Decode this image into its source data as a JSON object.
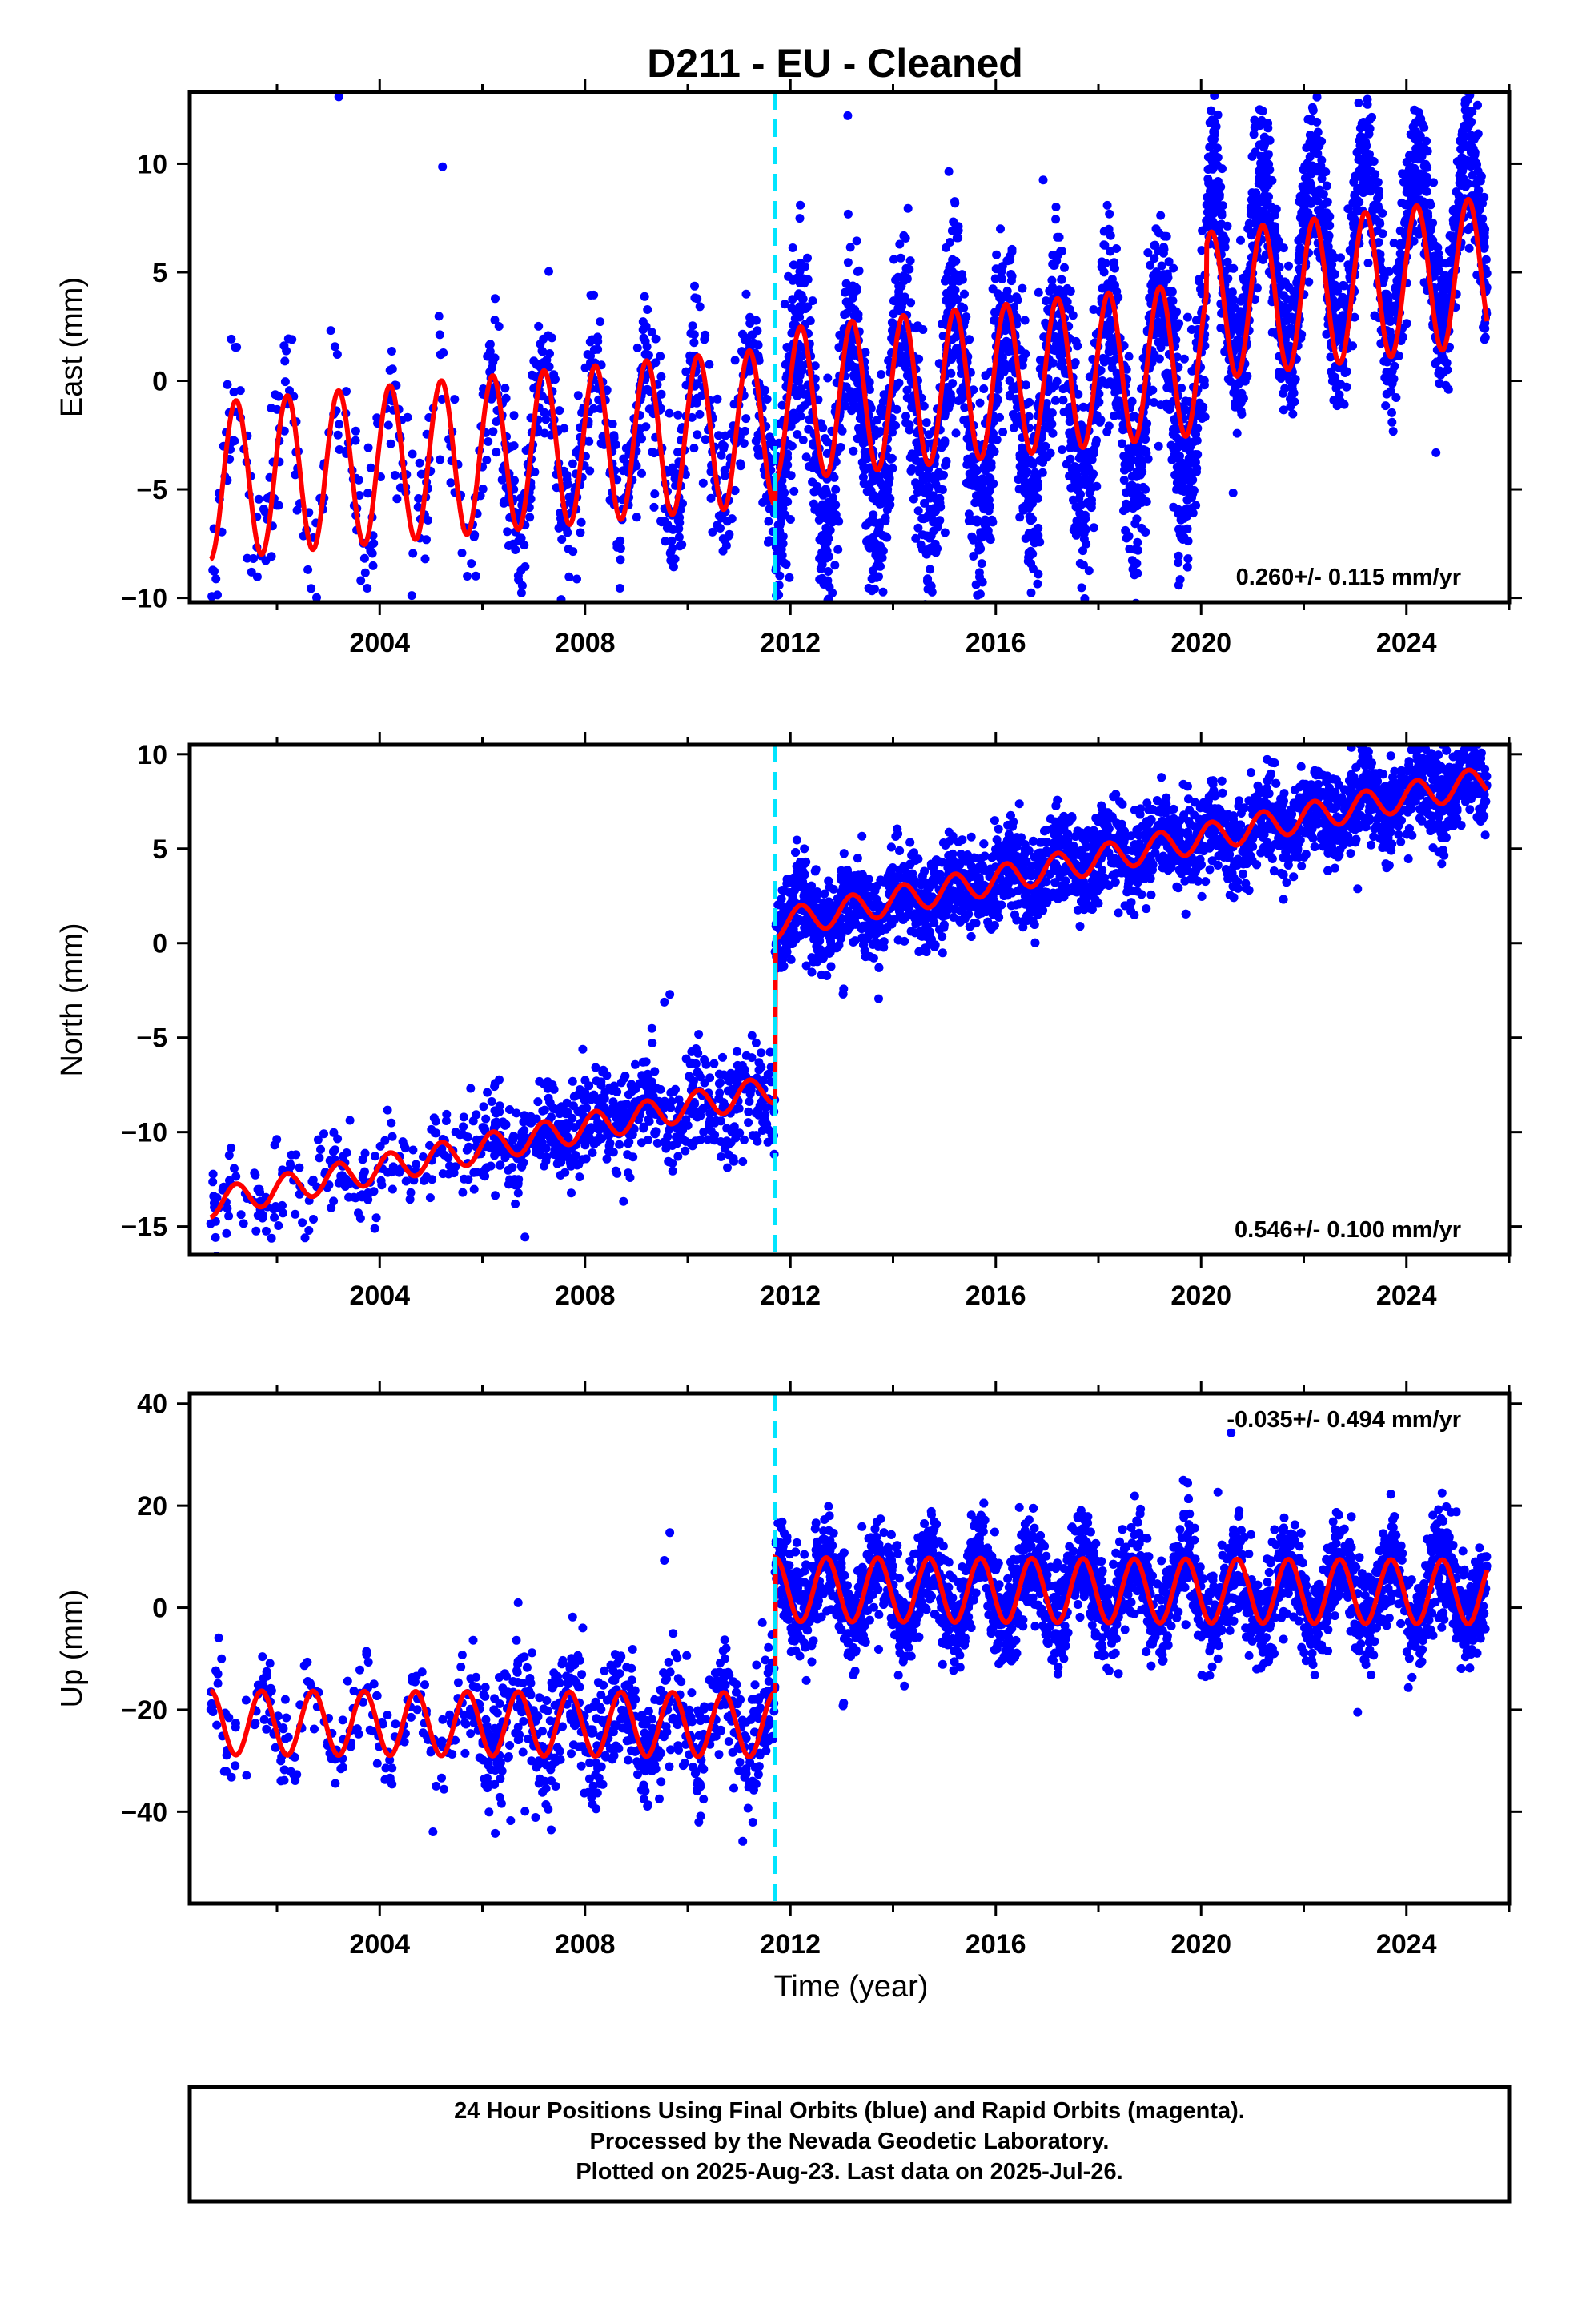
{
  "title": "D211  - EU - Cleaned",
  "xlabel": "Time (year)",
  "footer": {
    "line1": "24 Hour Positions Using Final Orbits (blue) and Rapid Orbits (magenta).",
    "line2": "Processed by the Nevada Geodetic Laboratory.",
    "line3": "Plotted on 2025-Aug-23. Last data on 2025-Jul-26."
  },
  "colors": {
    "data": "#0000ff",
    "model": "#ff0000",
    "break_line": "#00e5ff"
  },
  "chart_data": [
    {
      "type": "scatter",
      "component": "east",
      "ylabel": "East (mm)",
      "xlim": [
        2000.3,
        2026.0
      ],
      "ylim": [
        -10.2,
        13.3
      ],
      "xticks": [
        2004,
        2008,
        2012,
        2016,
        2020,
        2024
      ],
      "xticklabels": [
        "2004",
        "2008",
        "2012",
        "2016",
        "2020",
        "2024"
      ],
      "yticks": [
        -10,
        -5,
        0,
        5,
        10
      ],
      "yticklabels": [
        "−10",
        "−5",
        "0",
        "5",
        "10"
      ],
      "rate_label": "0.260+/- 0.115 mm/yr",
      "rate_position": "bottom-right",
      "break_epochs": [
        2011.7
      ],
      "data_span": [
        2000.7,
        2025.57
      ],
      "model": {
        "segments": [
          {
            "start": 2000.7,
            "end": 2011.7,
            "offset": -1.8,
            "rate": 0.23,
            "amplitude": 3.6
          },
          {
            "start": 2011.7,
            "end": 2020.1,
            "offset": -0.8,
            "rate": 0.26,
            "amplitude": 3.5
          },
          {
            "start": 2020.1,
            "end": 2025.57,
            "offset": 1.3,
            "rate": 0.3,
            "amplitude": 3.4
          }
        ],
        "phase_peak": 0.2
      },
      "scatter_bands": [
        {
          "start": 2000.7,
          "end": 2006.0,
          "count": 220,
          "spread": 1.7
        },
        {
          "start": 2006.0,
          "end": 2011.7,
          "count": 650,
          "spread": 1.6
        },
        {
          "start": 2011.7,
          "end": 2020.1,
          "count": 2300,
          "spread": 2.3,
          "amp_scale": 1.3,
          "shift": -1.2
        },
        {
          "start": 2020.1,
          "end": 2025.57,
          "count": 1600,
          "spread": 1.7,
          "amp_scale": 1.2,
          "shift": 1.6
        }
      ]
    },
    {
      "type": "scatter",
      "component": "north",
      "ylabel": "North (mm)",
      "xlim": [
        2000.3,
        2026.0
      ],
      "ylim": [
        -16.5,
        10.5
      ],
      "xticks": [
        2004,
        2008,
        2012,
        2016,
        2020,
        2024
      ],
      "xticklabels": [
        "2004",
        "2008",
        "2012",
        "2016",
        "2020",
        "2024"
      ],
      "yticks": [
        -15,
        -10,
        -5,
        0,
        5,
        10
      ],
      "yticklabels": [
        "−15",
        "−10",
        "−5",
        "0",
        "5",
        "10"
      ],
      "rate_label": "0.546+/- 0.100 mm/yr",
      "rate_position": "bottom-right",
      "break_epochs": [
        2011.7
      ],
      "data_span": [
        2000.7,
        2025.57
      ],
      "model": {
        "segments": [
          {
            "start": 2000.7,
            "end": 2011.7,
            "offset": -7.0,
            "rate": 0.55,
            "amplitude": 0.75
          },
          {
            "start": 2011.7,
            "end": 2025.57,
            "offset": 1.7,
            "rate": 0.55,
            "amplitude": 0.75
          }
        ],
        "phase_peak": 0.2
      },
      "scatter_bands": [
        {
          "start": 2000.7,
          "end": 2006.0,
          "count": 220,
          "spread": 1.2
        },
        {
          "start": 2006.0,
          "end": 2011.7,
          "count": 650,
          "spread": 1.3
        },
        {
          "start": 2011.7,
          "end": 2025.57,
          "count": 3900,
          "spread": 1.2
        }
      ]
    },
    {
      "type": "scatter",
      "component": "up",
      "ylabel": "Up (mm)",
      "xlim": [
        2000.3,
        2026.0
      ],
      "ylim": [
        -58,
        42
      ],
      "xticks": [
        2004,
        2008,
        2012,
        2016,
        2020,
        2024
      ],
      "xticklabels": [
        "2004",
        "2008",
        "2012",
        "2016",
        "2020",
        "2024"
      ],
      "yticks": [
        -40,
        -20,
        0,
        20,
        40
      ],
      "yticklabels": [
        "−40",
        "−20",
        "0",
        "20",
        "40"
      ],
      "rate_label": "-0.035+/- 0.494 mm/yr",
      "rate_position": "top-right",
      "break_epochs": [
        2011.7
      ],
      "data_span": [
        2000.7,
        2025.57
      ],
      "model": {
        "segments": [
          {
            "start": 2000.7,
            "end": 2011.7,
            "offset": -23.0,
            "rate": -0.035,
            "amplitude": 6.3
          },
          {
            "start": 2011.7,
            "end": 2025.57,
            "offset": 3.5,
            "rate": -0.035,
            "amplitude": 6.3
          }
        ],
        "phase_peak": 0.7
      },
      "scatter_bands": [
        {
          "start": 2000.7,
          "end": 2006.0,
          "count": 220,
          "spread": 4.5
        },
        {
          "start": 2006.0,
          "end": 2011.7,
          "count": 650,
          "spread": 6.0
        },
        {
          "start": 2011.7,
          "end": 2025.57,
          "count": 3900,
          "spread": 5.0
        }
      ]
    }
  ]
}
